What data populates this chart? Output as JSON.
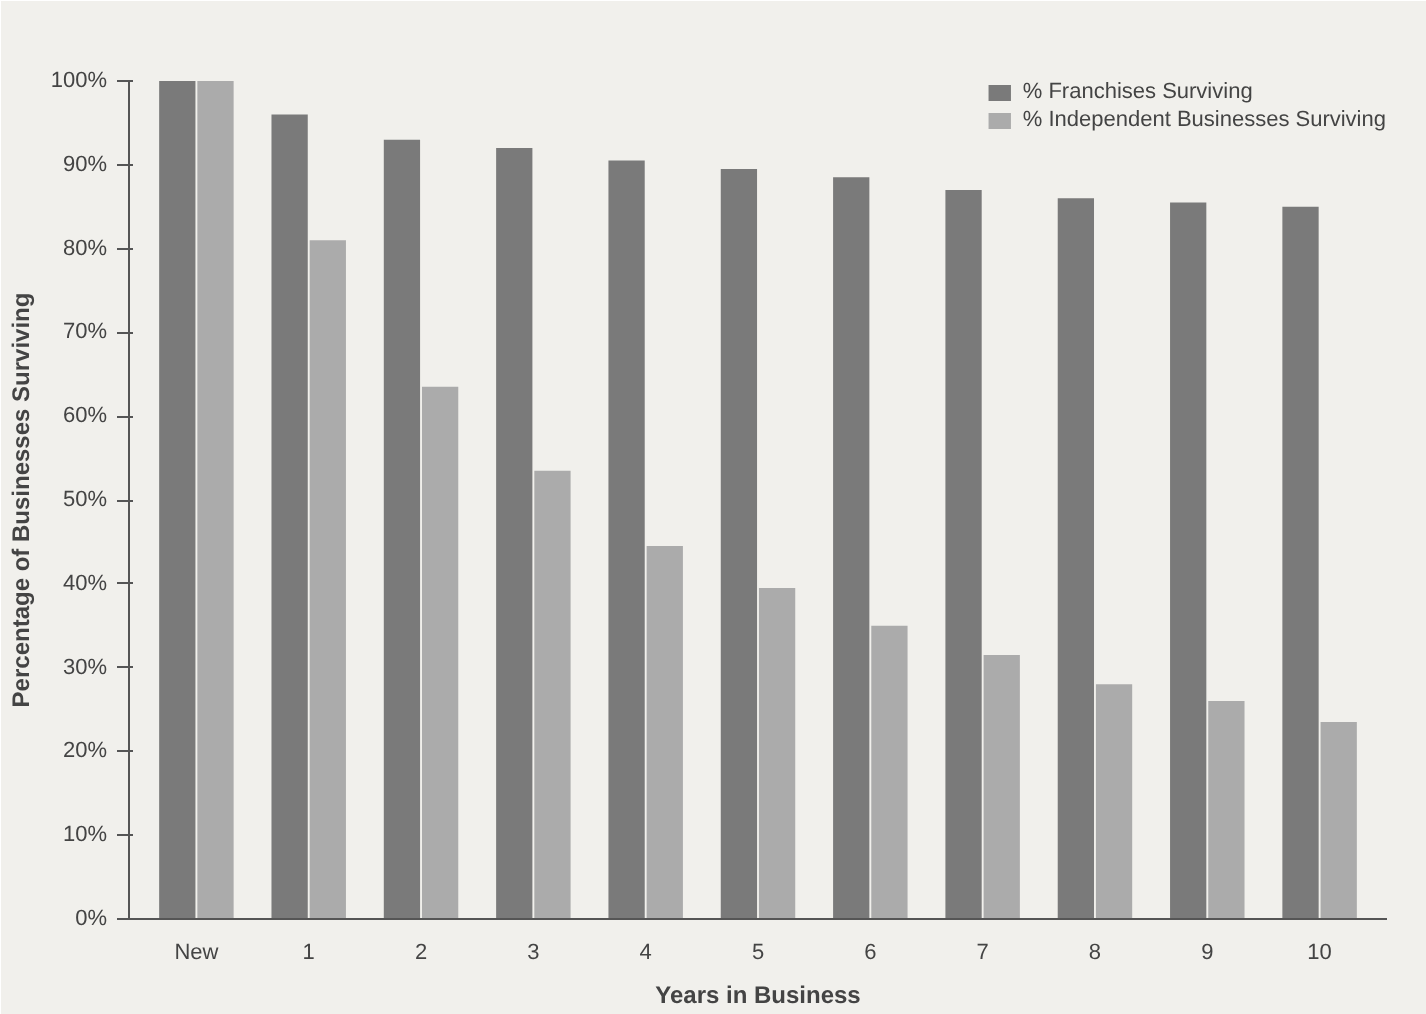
{
  "chart_data": {
    "type": "bar",
    "xlabel": "Years in Business",
    "ylabel": "Percentage of Businesses Surviving",
    "categories": [
      "New",
      "1",
      "2",
      "3",
      "4",
      "5",
      "6",
      "7",
      "8",
      "9",
      "10"
    ],
    "series": [
      {
        "name": "% Franchises Surviving",
        "color": "#7a7a7a",
        "values": [
          100,
          96,
          93,
          92,
          90.5,
          89.5,
          88.5,
          87,
          86,
          85.5,
          85
        ]
      },
      {
        "name": "% Independent Businesses Surviving",
        "color": "#ababab",
        "values": [
          100,
          81,
          63.5,
          53.5,
          44.5,
          39.5,
          35,
          31.5,
          28,
          26,
          23.5
        ]
      }
    ],
    "ylim": [
      0,
      100
    ],
    "yticks": [
      {
        "value": 0,
        "label": "0%"
      },
      {
        "value": 10,
        "label": "10%"
      },
      {
        "value": 20,
        "label": "20%"
      },
      {
        "value": 30,
        "label": "30%"
      },
      {
        "value": 40,
        "label": "40%"
      },
      {
        "value": 50,
        "label": "50%"
      },
      {
        "value": 60,
        "label": "60%"
      },
      {
        "value": 70,
        "label": "70%"
      },
      {
        "value": 80,
        "label": "80%"
      },
      {
        "value": 90,
        "label": "90%"
      },
      {
        "value": 100,
        "label": "100%"
      }
    ],
    "grid": false,
    "legend": "top right"
  }
}
